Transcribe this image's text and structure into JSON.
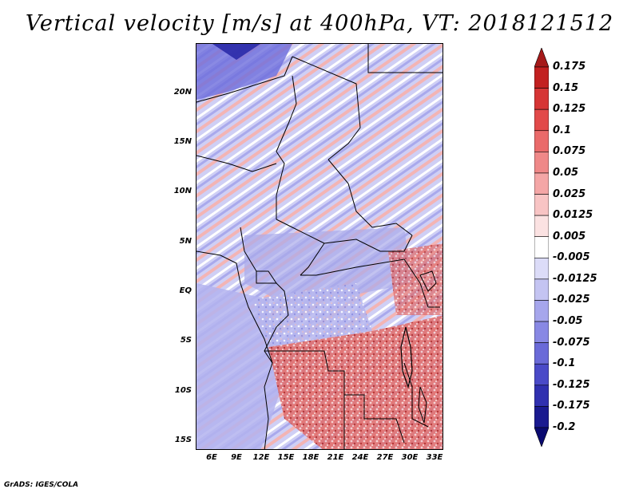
{
  "title": "Vertical velocity [m/s] at 400hPa, VT: 2018121512",
  "map": {
    "lat_labels": [
      "20N",
      "15N",
      "10N",
      "5N",
      "EQ",
      "5S",
      "10S",
      "15S"
    ],
    "lon_labels": [
      "6E",
      "9E",
      "12E",
      "15E",
      "18E",
      "21E",
      "24E",
      "27E",
      "30E",
      "33E"
    ],
    "lat_range": [
      -16,
      24
    ],
    "lon_range": [
      4,
      34
    ]
  },
  "colorbar": {
    "labels": [
      "0.175",
      "0.15",
      "0.125",
      "0.1",
      "0.075",
      "0.05",
      "0.025",
      "0.0125",
      "0.005",
      "-0.005",
      "-0.0125",
      "-0.025",
      "-0.05",
      "-0.075",
      "-0.1",
      "-0.125",
      "-0.175",
      "-0.2"
    ],
    "colors": [
      "#a51a1a",
      "#c22020",
      "#d63535",
      "#e24a4a",
      "#ea6a6a",
      "#ef8888",
      "#f4a6a6",
      "#f8c4c4",
      "#fbe2e2",
      "#ffffff",
      "#dcdcf8",
      "#c4c4f2",
      "#a6a6ec",
      "#8888e4",
      "#6a6ad8",
      "#4a4ac8",
      "#3030b0",
      "#1a1a90",
      "#0a0a70"
    ]
  },
  "footer": "GrADS: IGES/COLA"
}
